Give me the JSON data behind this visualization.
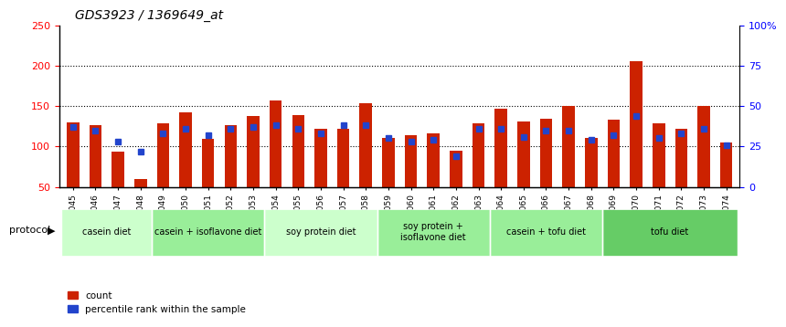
{
  "title": "GDS3923 / 1369649_at",
  "samples": [
    "GSM586045",
    "GSM586046",
    "GSM586047",
    "GSM586048",
    "GSM586049",
    "GSM586050",
    "GSM586051",
    "GSM586052",
    "GSM586053",
    "GSM586054",
    "GSM586055",
    "GSM586056",
    "GSM586057",
    "GSM586058",
    "GSM586059",
    "GSM586060",
    "GSM586061",
    "GSM586062",
    "GSM586063",
    "GSM586064",
    "GSM586065",
    "GSM586066",
    "GSM586067",
    "GSM586068",
    "GSM586069",
    "GSM586070",
    "GSM586071",
    "GSM586072",
    "GSM586073",
    "GSM586074"
  ],
  "counts": [
    130,
    126,
    94,
    60,
    128,
    142,
    109,
    126,
    138,
    157,
    139,
    122,
    122,
    153,
    110,
    114,
    116,
    95,
    128,
    147,
    131,
    134,
    150,
    110,
    133,
    205,
    128,
    122,
    150,
    105
  ],
  "percentiles": [
    37,
    35,
    28,
    22,
    33,
    36,
    32,
    36,
    37,
    38,
    36,
    33,
    38,
    38,
    30,
    28,
    29,
    19,
    36,
    36,
    31,
    35,
    35,
    29,
    32,
    44,
    30,
    33,
    36,
    26
  ],
  "groups": [
    {
      "label": "casein diet",
      "start": 0,
      "end": 4,
      "color": "#ccffcc"
    },
    {
      "label": "casein + isoflavone diet",
      "start": 4,
      "end": 9,
      "color": "#99ee99"
    },
    {
      "label": "soy protein diet",
      "start": 9,
      "end": 14,
      "color": "#ccffcc"
    },
    {
      "label": "soy protein +\nisoflavone diet",
      "start": 14,
      "end": 19,
      "color": "#99ee99"
    },
    {
      "label": "casein + tofu diet",
      "start": 19,
      "end": 24,
      "color": "#99ee99"
    },
    {
      "label": "tofu diet",
      "start": 24,
      "end": 30,
      "color": "#66cc66"
    }
  ],
  "bar_color": "#cc2200",
  "blue_color": "#2244cc",
  "left_ylim": [
    50,
    250
  ],
  "right_ylim": [
    0,
    100
  ],
  "left_yticks": [
    50,
    100,
    150,
    200,
    250
  ],
  "right_yticks": [
    0,
    25,
    50,
    75,
    100
  ],
  "right_yticklabels": [
    "0",
    "25",
    "50",
    "75",
    "100%"
  ]
}
